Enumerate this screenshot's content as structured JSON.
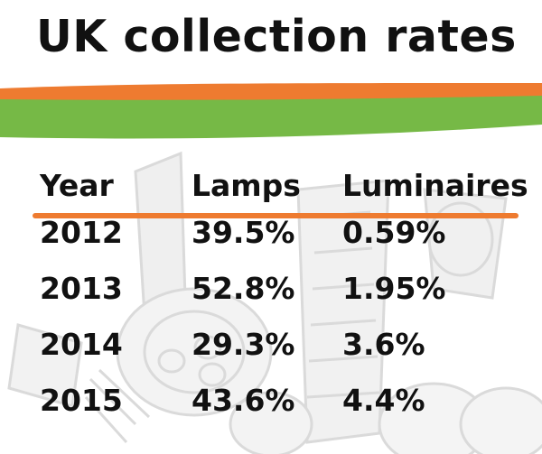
{
  "title": "UK collection rates",
  "table": {
    "headers": [
      "Year",
      "Lamps",
      "Luminaires"
    ],
    "rows": [
      [
        "2012",
        "39.5%",
        "0.59%"
      ],
      [
        "2013",
        "52.8%",
        "1.95%"
      ],
      [
        "2014",
        "29.3%",
        "3.6%"
      ],
      [
        "2015",
        "43.6%",
        "4.4%"
      ]
    ]
  },
  "colors": {
    "accent_orange": "#ee7b30",
    "accent_green": "#76b946",
    "text": "#111111"
  },
  "background_image": "faded-light-bulbs-and-luminaires"
}
